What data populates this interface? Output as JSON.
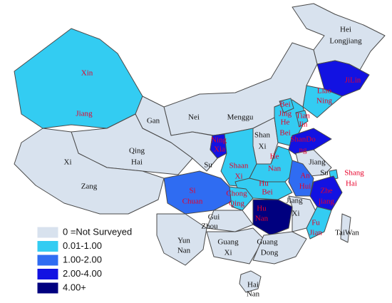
{
  "legend": {
    "items": [
      {
        "label": "0 =Not Surveyed",
        "color": "#d8e2ee"
      },
      {
        "label": "0.01-1.00",
        "color": "#33ccf2"
      },
      {
        "label": "1.00-2.00",
        "color": "#2f6cf2"
      },
      {
        "label": "2.00-4.00",
        "color": "#1212e2"
      },
      {
        "label": "4.00+",
        "color": "#00007f"
      }
    ]
  },
  "regions": [
    {
      "label": [
        "Hei",
        "Longjiang"
      ],
      "level": 0
    },
    {
      "label": [
        "JiLin"
      ],
      "level": 3
    },
    {
      "label": [
        "Liao",
        "Ning"
      ],
      "level": 1
    },
    {
      "label": [
        "Nei",
        "Menggu"
      ],
      "level": 0
    },
    {
      "label": [
        "Xin",
        "Jiang"
      ],
      "level": 1
    },
    {
      "label": [
        "Gan",
        "Su"
      ],
      "level": 0
    },
    {
      "label": [
        "Qing",
        "Hai"
      ],
      "level": 0
    },
    {
      "label": [
        "Xi",
        "Zang"
      ],
      "level": 0
    },
    {
      "label": [
        "Ning",
        "Xia"
      ],
      "level": 3
    },
    {
      "label": [
        "Shan",
        "Xi"
      ],
      "level": 0
    },
    {
      "label": [
        "Shaan",
        "Xi"
      ],
      "level": 1
    },
    {
      "label": [
        "He",
        "Bei"
      ],
      "level": 1
    },
    {
      "label": [
        "Bei",
        "Jing"
      ],
      "level": 1
    },
    {
      "label": [
        "Tian",
        "Jin"
      ],
      "level": 1
    },
    {
      "label": [
        "ShanDo",
        "ng"
      ],
      "level": 3
    },
    {
      "label": [
        "He",
        "Nan"
      ],
      "level": 1
    },
    {
      "label": [
        "Jiang",
        "Su"
      ],
      "level": 0
    },
    {
      "label": [
        "Shang",
        "Hai"
      ],
      "level": 1
    },
    {
      "label": [
        "An",
        "Hui"
      ],
      "level": 2
    },
    {
      "label": [
        "Zhe",
        "jiang"
      ],
      "level": 3
    },
    {
      "label": [
        "Hu",
        "Bei"
      ],
      "level": 1
    },
    {
      "label": [
        "Si",
        "Chuan"
      ],
      "level": 2
    },
    {
      "label": [
        "Chong",
        "Qing"
      ],
      "level": 1
    },
    {
      "label": [
        "Hu",
        "Nan"
      ],
      "level": 4
    },
    {
      "label": [
        "Jiang",
        "Xi"
      ],
      "level": 0
    },
    {
      "label": [
        "Fu",
        "Jian"
      ],
      "level": 1
    },
    {
      "label": [
        "Gui",
        "Zhou"
      ],
      "level": 0
    },
    {
      "label": [
        "Yun",
        "Nan"
      ],
      "level": 0
    },
    {
      "label": [
        "Guang",
        "Xi"
      ],
      "level": 0
    },
    {
      "label": [
        "Guang",
        "Dong"
      ],
      "level": 0
    },
    {
      "label": [
        "Hai",
        "Nan"
      ],
      "level": 0
    },
    {
      "label": [
        "TaiWan"
      ],
      "level": 0
    }
  ]
}
